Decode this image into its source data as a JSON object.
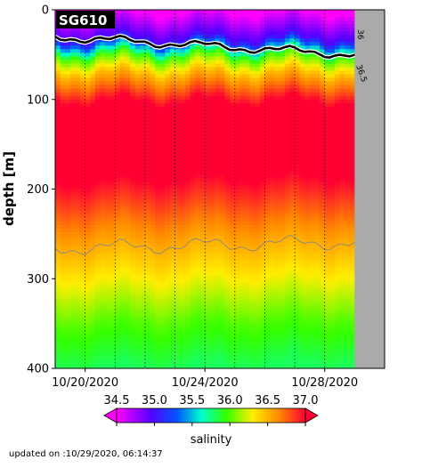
{
  "chart_data": {
    "type": "heatmap",
    "title": "SG610",
    "ylabel": "depth [m]",
    "xlabel": "",
    "x_tick_labels": [
      "10/20/2020",
      "10/24/2020",
      "10/28/2020"
    ],
    "x_ticks": [
      "2020-10-20",
      "2020-10-24",
      "2020-10-28"
    ],
    "x_range": [
      "2020-10-19",
      "2020-10-30"
    ],
    "y_ticks": [
      0,
      100,
      200,
      300,
      400
    ],
    "ylim": [
      400,
      0
    ],
    "y_inverted": true,
    "colorbar": {
      "label": "salinity",
      "ticks": [
        34.5,
        35.0,
        35.5,
        36.0,
        36.5,
        37.0
      ],
      "tick_labels": [
        "34.5",
        "35.0",
        "35.5",
        "36.0",
        "36.5",
        "37.0"
      ],
      "range": [
        34.5,
        37.0
      ],
      "extend": "both",
      "colormap": "gist_rainbow_reversed"
    },
    "contour_labels": [
      "36",
      "36.5"
    ],
    "field_summary": [
      {
        "depth": 0,
        "salinity": 34.5
      },
      {
        "depth": 30,
        "salinity": 35.0
      },
      {
        "depth": 50,
        "salinity": 36.0
      },
      {
        "depth": 70,
        "salinity": 36.5
      },
      {
        "depth": 100,
        "salinity": 37.0
      },
      {
        "depth": 190,
        "salinity": 37.0
      },
      {
        "depth": 250,
        "salinity": 36.6
      },
      {
        "depth": 300,
        "salinity": 36.3
      },
      {
        "depth": 350,
        "salinity": 36.0
      },
      {
        "depth": 400,
        "salinity": 35.8
      }
    ],
    "grid": true,
    "no_data_after": "2020-10-29"
  },
  "footer": {
    "updated": "updated on :10/29/2020, 06:14:37"
  },
  "colors": {
    "no_data": "#aaaaaa",
    "contour": "#888888",
    "mixed_layer_line": "#000000"
  }
}
